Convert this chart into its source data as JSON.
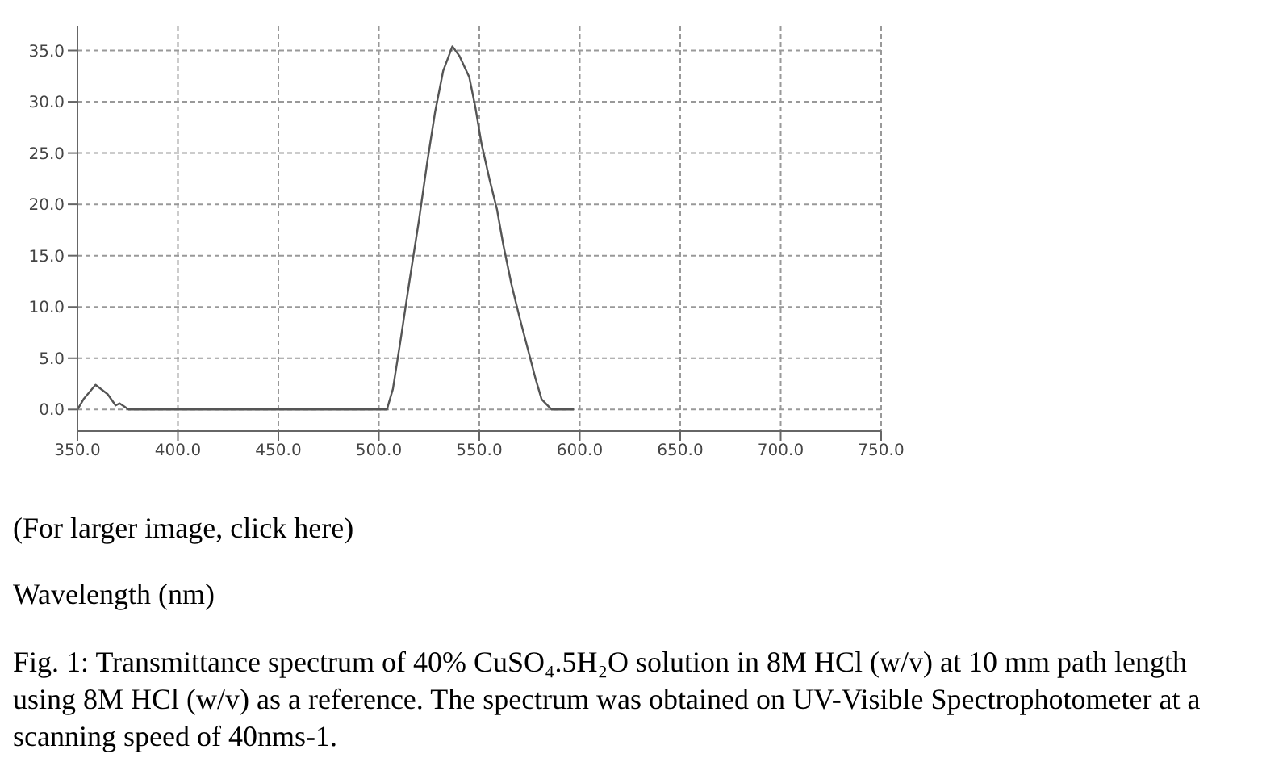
{
  "chart_data": {
    "type": "line",
    "xlabel": "Wavelength (nm)",
    "x": [
      350,
      353,
      359,
      365,
      369,
      371,
      375.5,
      400,
      450,
      500,
      504,
      507,
      511,
      515,
      520,
      524,
      528,
      532,
      536.6,
      540,
      545,
      548,
      551,
      555,
      558.8,
      562,
      566,
      570,
      574,
      578,
      581,
      586,
      597
    ],
    "series": [
      {
        "color": "#555555",
        "values": [
          0,
          1,
          2.4,
          1.5,
          0.4,
          0.6,
          0,
          0,
          0,
          0,
          0,
          2,
          7,
          12.2,
          18.5,
          24,
          29,
          33,
          35.4,
          34.5,
          32.4,
          29.5,
          26,
          22.5,
          19.5,
          16,
          12.2,
          9,
          6,
          3,
          1,
          0,
          0
        ]
      }
    ],
    "xlim": [
      350,
      750
    ],
    "xticks": [
      {
        "value": 350,
        "label": "350.0"
      },
      {
        "value": 400,
        "label": "400.0"
      },
      {
        "value": 450,
        "label": "450.0"
      },
      {
        "value": 500,
        "label": "500.0"
      },
      {
        "value": 550,
        "label": "550.0"
      },
      {
        "value": 600,
        "label": "600.0"
      },
      {
        "value": 650,
        "label": "650.0"
      },
      {
        "value": 700,
        "label": "700.0"
      },
      {
        "value": 750,
        "label": "750.0"
      }
    ],
    "ylim": [
      -2.1,
      37.4
    ],
    "yticks": [
      {
        "value": 0,
        "label": "0.0"
      },
      {
        "value": 5,
        "label": "5.0"
      },
      {
        "value": 10,
        "label": "10.0"
      },
      {
        "value": 15,
        "label": "15.0"
      },
      {
        "value": 20,
        "label": "20.0"
      },
      {
        "value": 25,
        "label": "25.0"
      },
      {
        "value": 30,
        "label": "30.0"
      },
      {
        "value": 35,
        "label": "35.0"
      }
    ],
    "grid": true,
    "marker": "none",
    "line_style": "solid",
    "annotations": [
      "(For larger image, click here)",
      "Fig. 1: Transmittance spectrum of 40% CuSO₄.5H₂O solution in 8M HCl (w/v) at 10 mm path length using 8M HCl (w/v) as a reference. The spectrum was obtained on UV-Visible Spectrophotometer at a scanning speed of 40nms-1."
    ]
  }
}
